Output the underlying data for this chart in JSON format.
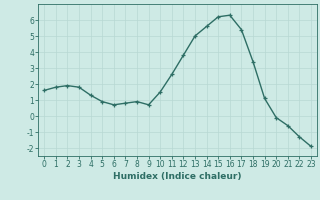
{
  "x": [
    0,
    1,
    2,
    3,
    4,
    5,
    6,
    7,
    8,
    9,
    10,
    11,
    12,
    13,
    14,
    15,
    16,
    17,
    18,
    19,
    20,
    21,
    22,
    23
  ],
  "y": [
    1.6,
    1.8,
    1.9,
    1.8,
    1.3,
    0.9,
    0.7,
    0.8,
    0.9,
    0.7,
    1.5,
    2.6,
    3.8,
    5.0,
    5.6,
    6.2,
    6.3,
    5.4,
    3.4,
    1.1,
    -0.1,
    -0.6,
    -1.3,
    -1.9
  ],
  "line_color": "#2e6e65",
  "marker": "+",
  "markersize": 3.5,
  "linewidth": 1.0,
  "background_color": "#ceeae5",
  "grid_color": "#b8d8d3",
  "xlabel": "Humidex (Indice chaleur)",
  "ylabel": "",
  "ylim": [
    -2.5,
    7.0
  ],
  "xlim": [
    -0.5,
    23.5
  ],
  "yticks": [
    -2,
    -1,
    0,
    1,
    2,
    3,
    4,
    5,
    6
  ],
  "xticks": [
    0,
    1,
    2,
    3,
    4,
    5,
    6,
    7,
    8,
    9,
    10,
    11,
    12,
    13,
    14,
    15,
    16,
    17,
    18,
    19,
    20,
    21,
    22,
    23
  ],
  "xlabel_fontsize": 6.5,
  "tick_fontsize": 5.5,
  "axis_color": "#2e6e65",
  "spine_color": "#2e6e65",
  "grid_linewidth": 0.5,
  "markeredgewidth": 0.9
}
